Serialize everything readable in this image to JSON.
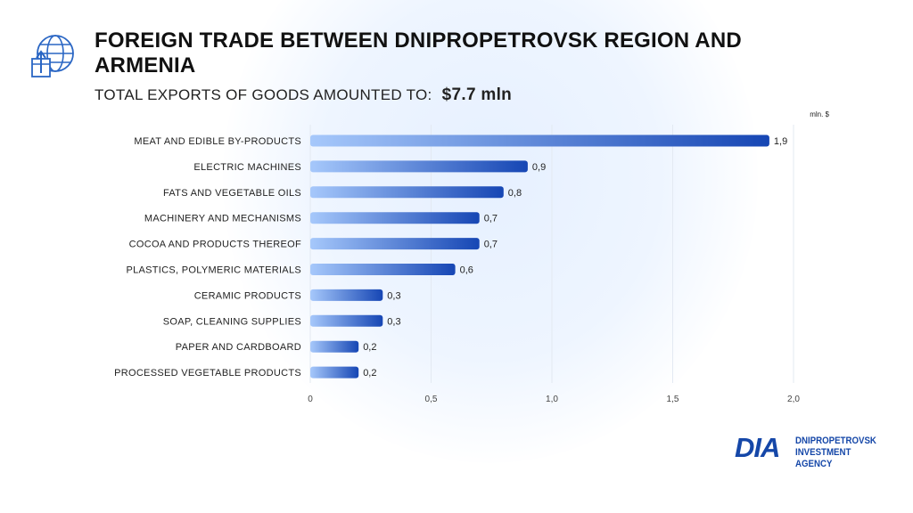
{
  "header": {
    "title": "FOREIGN TRADE BETWEEN DNIPROPETROVSK REGION AND ARMENIA",
    "subtitle_prefix": "TOTAL EXPORTS OF GOODS AMOUNTED TO:",
    "subtitle_value": "$7.7  mln",
    "icon": "globe-export-icon"
  },
  "brand": {
    "logo_text": "DIA",
    "line1": "DNIPROPETROVSK",
    "line2": "INVESTMENT AGENCY",
    "color": "#1547a8"
  },
  "chart_data": {
    "type": "bar",
    "orientation": "horizontal",
    "unit_label": "mln. $",
    "categories": [
      "MEAT AND EDIBLE BY-PRODUCTS",
      "ELECTRIC MACHINES",
      "FATS AND VEGETABLE OILS",
      "MACHINERY AND MECHANISMS",
      "COCOA AND PRODUCTS THEREOF",
      "PLASTICS, POLYMERIC MATERIALS",
      "CERAMIC PRODUCTS",
      "SOAP, CLEANING SUPPLIES",
      "PAPER AND CARDBOARD",
      "PROCESSED VEGETABLE PRODUCTS"
    ],
    "values": [
      1.9,
      0.9,
      0.8,
      0.7,
      0.7,
      0.6,
      0.3,
      0.3,
      0.2,
      0.2
    ],
    "value_labels": [
      "1,9",
      "0,9",
      "0,8",
      "0,7",
      "0,7",
      "0,6",
      "0,3",
      "0,3",
      "0,2",
      "0,2"
    ],
    "xlim": [
      0,
      2.0
    ],
    "xticks": [
      0,
      0.5,
      1.0,
      1.5,
      2.0
    ],
    "xtick_labels": [
      "0",
      "0,5",
      "1,0",
      "1,5",
      "2,0"
    ],
    "grid": true,
    "bar_color_start": "#a6c8fb",
    "bar_color_end": "#1646b4"
  }
}
